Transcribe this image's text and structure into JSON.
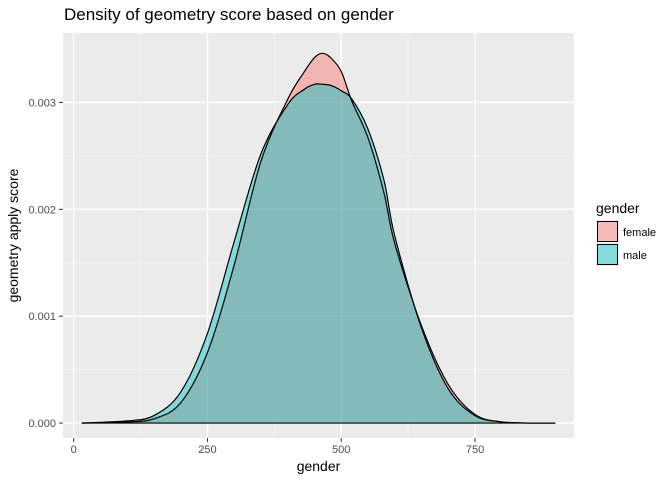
{
  "chart_data": {
    "type": "area",
    "title": "Density of geometry score based on gender",
    "xlabel": "gender",
    "ylabel": "geometry apply score",
    "xlim": [
      -20,
      935
    ],
    "ylim": [
      -0.00014,
      0.00365
    ],
    "x_ticks": [
      0,
      250,
      500,
      750
    ],
    "x_tick_labels": [
      "0",
      "250",
      "500",
      "750"
    ],
    "y_ticks": [
      0,
      0.001,
      0.002,
      0.003
    ],
    "y_tick_labels": [
      "0.000",
      "0.001",
      "0.002",
      "0.003"
    ],
    "grid": true,
    "legend": {
      "title": "gender",
      "placement": "right"
    },
    "series": [
      {
        "name": "female",
        "color": "#F8766D",
        "x": [
          15,
          100,
          150,
          200,
          250,
          300,
          350,
          400,
          430,
          450,
          465,
          480,
          500,
          520,
          550,
          580,
          600,
          650,
          700,
          750,
          800,
          850,
          900
        ],
        "values": [
          0,
          1e-05,
          4e-05,
          0.00019,
          0.00066,
          0.00148,
          0.00245,
          0.00303,
          0.00328,
          0.00342,
          0.00346,
          0.00342,
          0.00329,
          0.00301,
          0.00267,
          0.00215,
          0.00168,
          0.00091,
          0.00036,
          8e-05,
          1e-05,
          0,
          0
        ]
      },
      {
        "name": "male",
        "color": "#00BFC4",
        "x": [
          15,
          100,
          150,
          200,
          250,
          300,
          350,
          400,
          430,
          450,
          465,
          480,
          500,
          520,
          550,
          580,
          600,
          650,
          700,
          750,
          800,
          850,
          900
        ],
        "values": [
          0,
          2e-05,
          7e-05,
          0.00029,
          0.00084,
          0.0017,
          0.00252,
          0.00298,
          0.00312,
          0.00317,
          0.00317,
          0.00316,
          0.00311,
          0.00303,
          0.00275,
          0.00227,
          0.00175,
          0.00089,
          0.00032,
          7e-05,
          1e-05,
          0,
          0
        ]
      }
    ]
  }
}
